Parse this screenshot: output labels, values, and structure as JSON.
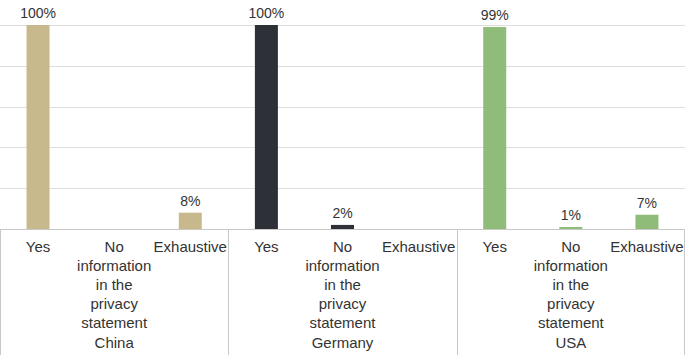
{
  "chart_data": {
    "type": "bar",
    "categories": [
      "Yes",
      "No information in the privacy statement",
      "Exhaustive"
    ],
    "series": [
      {
        "name": "China",
        "color": "#c8b98d",
        "values": [
          100,
          null,
          8
        ],
        "value_labels": [
          "100%",
          null,
          "8%"
        ]
      },
      {
        "name": "Germany",
        "color": "#2e3038",
        "values": [
          100,
          2,
          null
        ],
        "value_labels": [
          "100%",
          "2%",
          null
        ]
      },
      {
        "name": "USA",
        "color": "#8fbc78",
        "values": [
          99,
          1,
          7
        ],
        "value_labels": [
          "99%",
          "1%",
          "7%"
        ]
      }
    ],
    "ylim": [
      0,
      100
    ],
    "yticks": [
      0,
      20,
      40,
      60,
      80,
      100
    ],
    "grid": true,
    "data_labels": true,
    "tick_labels": false
  }
}
